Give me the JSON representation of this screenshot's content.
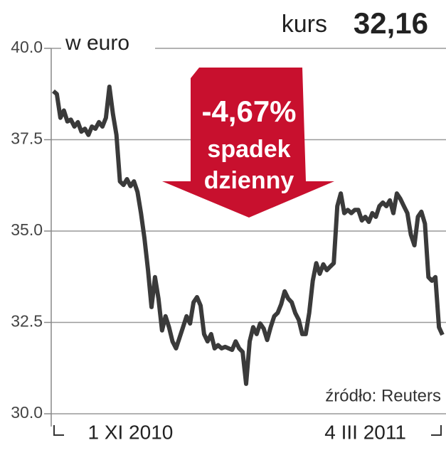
{
  "chart_data": {
    "type": "line",
    "title": "kurs",
    "title_value": "32,16",
    "y_label": "w euro",
    "annotation": {
      "change": "-4,67%",
      "line1": "spadek",
      "line2": "dzienny"
    },
    "source": "źródło: Reuters",
    "ylim": [
      30,
      40
    ],
    "yticks": [
      {
        "value": 30,
        "label": "30.0"
      },
      {
        "value": 32.5,
        "label": "32.5"
      },
      {
        "value": 35,
        "label": "35.0"
      },
      {
        "value": 37.5,
        "label": "37.5"
      },
      {
        "value": 40,
        "label": "40.0"
      }
    ],
    "grid": true,
    "categories": [
      null,
      null,
      null,
      null,
      null,
      null,
      null,
      null,
      null,
      null,
      null,
      null,
      null,
      null,
      null,
      null,
      null,
      null,
      null,
      null,
      null,
      null,
      "1 XI 2010",
      null,
      null,
      null,
      null,
      null,
      null,
      null,
      null,
      null,
      null,
      null,
      null,
      null,
      null,
      null,
      null,
      null,
      null,
      null,
      null,
      null,
      null,
      null,
      null,
      null,
      null,
      null,
      null,
      null,
      null,
      null,
      null,
      null,
      null,
      null,
      null,
      null,
      null,
      null,
      null,
      null,
      null,
      null,
      null,
      null,
      null,
      null,
      null,
      null,
      null,
      null,
      null,
      null,
      null,
      null,
      null,
      null,
      null,
      null,
      null,
      null,
      null,
      null,
      null,
      null,
      null,
      "4 III 2011",
      null,
      null,
      null,
      null,
      null,
      null,
      null,
      null,
      null,
      null,
      null,
      null,
      null,
      null,
      null,
      null,
      null,
      null,
      null,
      null,
      null,
      null
    ],
    "series": [
      {
        "name": "kurs",
        "color": "#3a3a3a",
        "values": [
          38.83,
          38.75,
          38.1,
          38.3,
          38.0,
          38.05,
          37.86,
          37.98,
          37.72,
          37.8,
          37.63,
          37.86,
          37.8,
          37.98,
          37.86,
          38.1,
          38.95,
          38.2,
          37.63,
          36.36,
          36.26,
          36.42,
          36.23,
          36.36,
          36.07,
          35.49,
          34.8,
          33.93,
          32.92,
          33.74,
          33.15,
          32.28,
          32.67,
          32.37,
          31.98,
          31.79,
          32.08,
          32.37,
          32.67,
          32.47,
          33.05,
          33.19,
          32.96,
          32.18,
          31.98,
          32.18,
          31.79,
          31.88,
          31.79,
          31.83,
          31.79,
          31.75,
          31.98,
          31.79,
          31.69,
          30.82,
          31.98,
          32.37,
          32.18,
          32.47,
          32.33,
          32.02,
          32.37,
          32.67,
          32.76,
          33.0,
          33.35,
          33.15,
          33.05,
          32.76,
          32.57,
          32.18,
          32.18,
          32.76,
          33.64,
          34.12,
          33.83,
          34.09,
          33.93,
          34.03,
          34.12,
          35.68,
          36.03,
          35.49,
          35.58,
          35.49,
          35.58,
          35.58,
          35.29,
          35.39,
          35.25,
          35.49,
          35.39,
          35.68,
          35.78,
          35.68,
          35.84,
          35.49,
          36.03,
          35.88,
          35.68,
          35.49,
          34.9,
          34.61,
          35.39,
          35.53,
          35.2,
          33.74,
          33.64,
          33.74,
          32.37,
          32.16
        ]
      }
    ]
  }
}
